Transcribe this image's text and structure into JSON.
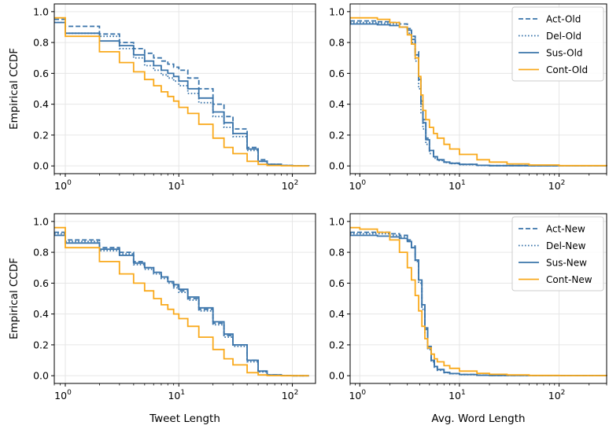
{
  "colors": {
    "blue": "#3a74aa",
    "orange": "#f9a91b",
    "grid": "#e6e6e6"
  },
  "chart_data": [
    {
      "type": "line",
      "xscale": "log",
      "xlim": [
        0.8,
        160
      ],
      "ylim": [
        -0.05,
        1.05
      ],
      "xlabel": "",
      "ylabel": "Empirical CCDF",
      "legend": null,
      "grid": true,
      "yticks": [
        "0.0",
        "0.2",
        "0.4",
        "0.6",
        "0.8",
        "1.0"
      ],
      "xticks": [
        {
          "base": "10",
          "exp": "0",
          "value": 1
        },
        {
          "base": "10",
          "exp": "1",
          "value": 10
        },
        {
          "base": "10",
          "exp": "2",
          "value": 100
        }
      ],
      "series": [
        {
          "name": "Act-Old",
          "style": "dashed",
          "color": "#3a74aa",
          "x": [
            0.8,
            1,
            2,
            3,
            4,
            5,
            6,
            7,
            8,
            9,
            10,
            12,
            15,
            20,
            25,
            30,
            40,
            50,
            60,
            80,
            100,
            140
          ],
          "y": [
            0.95,
            0.905,
            0.855,
            0.8,
            0.76,
            0.73,
            0.7,
            0.68,
            0.66,
            0.64,
            0.62,
            0.57,
            0.5,
            0.4,
            0.32,
            0.24,
            0.12,
            0.04,
            0.01,
            0.003,
            0.001,
            0
          ]
        },
        {
          "name": "Del-Old",
          "style": "dotted",
          "color": "#3a74aa",
          "x": [
            0.8,
            1,
            2,
            3,
            4,
            5,
            6,
            7,
            8,
            9,
            10,
            12,
            15,
            20,
            25,
            30,
            40,
            50,
            60,
            80,
            100,
            140
          ],
          "y": [
            0.93,
            0.86,
            0.84,
            0.76,
            0.7,
            0.65,
            0.62,
            0.59,
            0.57,
            0.55,
            0.52,
            0.47,
            0.41,
            0.32,
            0.25,
            0.19,
            0.1,
            0.03,
            0.01,
            0.003,
            0.001,
            0
          ]
        },
        {
          "name": "Sus-Old",
          "style": "solid",
          "color": "#3a74aa",
          "x": [
            0.8,
            1,
            2,
            3,
            4,
            5,
            6,
            7,
            8,
            9,
            10,
            12,
            15,
            20,
            25,
            30,
            40,
            50,
            60,
            80,
            100,
            140
          ],
          "y": [
            0.93,
            0.86,
            0.81,
            0.78,
            0.72,
            0.68,
            0.65,
            0.62,
            0.6,
            0.58,
            0.55,
            0.5,
            0.44,
            0.35,
            0.28,
            0.21,
            0.11,
            0.03,
            0.01,
            0.003,
            0.001,
            0
          ]
        },
        {
          "name": "Cont-Old",
          "style": "solid",
          "color": "#f9a91b",
          "x": [
            0.8,
            1,
            2,
            3,
            4,
            5,
            6,
            7,
            8,
            9,
            10,
            12,
            15,
            20,
            25,
            30,
            40,
            50,
            60,
            80,
            100,
            140
          ],
          "y": [
            0.96,
            0.84,
            0.74,
            0.67,
            0.61,
            0.56,
            0.52,
            0.48,
            0.45,
            0.42,
            0.38,
            0.34,
            0.27,
            0.18,
            0.12,
            0.08,
            0.03,
            0.01,
            0.003,
            0.001,
            0,
            0
          ]
        }
      ]
    },
    {
      "type": "line",
      "xscale": "log",
      "xlim": [
        0.8,
        300
      ],
      "ylim": [
        -0.05,
        1.05
      ],
      "xlabel": "",
      "ylabel": "",
      "legend": "top-right",
      "grid": true,
      "yticks": [
        "0.0",
        "0.2",
        "0.4",
        "0.6",
        "0.8",
        "1.0"
      ],
      "xticks": [
        {
          "base": "10",
          "exp": "0",
          "value": 1
        },
        {
          "base": "10",
          "exp": "1",
          "value": 10
        },
        {
          "base": "10",
          "exp": "2",
          "value": 100
        }
      ],
      "series": [
        {
          "name": "Act-Old",
          "style": "dashed",
          "color": "#3a74aa",
          "x": [
            0.8,
            1,
            1.5,
            2,
            2.5,
            3,
            3.3,
            3.6,
            3.9,
            4.1,
            4.3,
            4.6,
            5,
            5.5,
            6,
            7,
            8,
            10,
            15,
            20,
            50,
            300
          ],
          "y": [
            0.94,
            0.94,
            0.935,
            0.93,
            0.92,
            0.89,
            0.84,
            0.74,
            0.58,
            0.42,
            0.3,
            0.18,
            0.1,
            0.06,
            0.04,
            0.025,
            0.018,
            0.01,
            0.004,
            0.002,
            0.001,
            0
          ]
        },
        {
          "name": "Del-Old",
          "style": "dotted",
          "color": "#3a74aa",
          "x": [
            0.8,
            1,
            1.5,
            2,
            2.5,
            3,
            3.3,
            3.6,
            3.9,
            4.1,
            4.3,
            4.6,
            5,
            5.5,
            6,
            7,
            8,
            10,
            15,
            20,
            50,
            300
          ],
          "y": [
            0.93,
            0.93,
            0.925,
            0.92,
            0.9,
            0.86,
            0.8,
            0.68,
            0.5,
            0.34,
            0.24,
            0.14,
            0.08,
            0.05,
            0.035,
            0.022,
            0.015,
            0.008,
            0.003,
            0.002,
            0.001,
            0
          ]
        },
        {
          "name": "Sus-Old",
          "style": "solid",
          "color": "#3a74aa",
          "x": [
            0.8,
            1,
            1.5,
            2,
            2.5,
            3,
            3.3,
            3.6,
            3.9,
            4.1,
            4.3,
            4.6,
            5,
            5.5,
            6,
            7,
            8,
            10,
            15,
            20,
            50,
            300
          ],
          "y": [
            0.92,
            0.92,
            0.915,
            0.91,
            0.9,
            0.88,
            0.82,
            0.72,
            0.56,
            0.4,
            0.28,
            0.17,
            0.1,
            0.06,
            0.04,
            0.025,
            0.017,
            0.01,
            0.004,
            0.002,
            0.001,
            0
          ]
        },
        {
          "name": "Cont-Old",
          "style": "solid",
          "color": "#f9a91b",
          "x": [
            0.8,
            1,
            1.5,
            2,
            2.5,
            3,
            3.3,
            3.6,
            3.9,
            4.1,
            4.3,
            4.6,
            5,
            5.5,
            6,
            7,
            8,
            10,
            15,
            20,
            30,
            50,
            100,
            300
          ],
          "y": [
            0.96,
            0.96,
            0.95,
            0.93,
            0.9,
            0.85,
            0.79,
            0.7,
            0.58,
            0.46,
            0.36,
            0.3,
            0.25,
            0.21,
            0.18,
            0.14,
            0.11,
            0.075,
            0.04,
            0.025,
            0.013,
            0.006,
            0.002,
            0
          ]
        }
      ]
    },
    {
      "type": "line",
      "xscale": "log",
      "xlim": [
        0.8,
        160
      ],
      "ylim": [
        -0.05,
        1.05
      ],
      "xlabel": "Tweet Length",
      "ylabel": "Empirical CCDF",
      "legend": null,
      "grid": true,
      "yticks": [
        "0.0",
        "0.2",
        "0.4",
        "0.6",
        "0.8",
        "1.0"
      ],
      "xticks": [
        {
          "base": "10",
          "exp": "0",
          "value": 1
        },
        {
          "base": "10",
          "exp": "1",
          "value": 10
        },
        {
          "base": "10",
          "exp": "2",
          "value": 100
        }
      ],
      "series": [
        {
          "name": "Act-New",
          "style": "dashed",
          "color": "#3a74aa",
          "x": [
            0.8,
            1,
            2,
            3,
            4,
            5,
            6,
            7,
            8,
            9,
            10,
            12,
            15,
            20,
            25,
            30,
            40,
            50,
            60,
            80,
            100,
            140
          ],
          "y": [
            0.93,
            0.88,
            0.83,
            0.8,
            0.74,
            0.7,
            0.67,
            0.64,
            0.61,
            0.58,
            0.55,
            0.5,
            0.43,
            0.34,
            0.26,
            0.2,
            0.1,
            0.03,
            0.005,
            0.001,
            0,
            0
          ]
        },
        {
          "name": "Del-New",
          "style": "dotted",
          "color": "#3a74aa",
          "x": [
            0.8,
            1,
            2,
            3,
            4,
            5,
            6,
            7,
            8,
            9,
            10,
            12,
            15,
            20,
            25,
            30,
            40,
            50,
            60,
            80,
            100,
            140
          ],
          "y": [
            0.92,
            0.87,
            0.81,
            0.79,
            0.72,
            0.69,
            0.66,
            0.63,
            0.6,
            0.57,
            0.54,
            0.49,
            0.42,
            0.33,
            0.25,
            0.19,
            0.09,
            0.025,
            0.004,
            0.001,
            0,
            0
          ]
        },
        {
          "name": "Sus-New",
          "style": "solid",
          "color": "#3a74aa",
          "x": [
            0.8,
            1,
            2,
            3,
            4,
            5,
            6,
            7,
            8,
            9,
            10,
            12,
            15,
            20,
            25,
            30,
            40,
            50,
            60,
            80,
            100,
            140
          ],
          "y": [
            0.91,
            0.86,
            0.82,
            0.78,
            0.73,
            0.7,
            0.67,
            0.64,
            0.61,
            0.59,
            0.56,
            0.51,
            0.44,
            0.35,
            0.27,
            0.2,
            0.1,
            0.03,
            0.005,
            0.001,
            0,
            0
          ]
        },
        {
          "name": "Cont-New",
          "style": "solid",
          "color": "#f9a91b",
          "x": [
            0.8,
            1,
            2,
            3,
            4,
            5,
            6,
            7,
            8,
            9,
            10,
            12,
            15,
            20,
            25,
            30,
            40,
            50,
            60,
            80,
            100,
            140
          ],
          "y": [
            0.96,
            0.83,
            0.74,
            0.66,
            0.6,
            0.55,
            0.5,
            0.46,
            0.43,
            0.4,
            0.37,
            0.32,
            0.25,
            0.17,
            0.11,
            0.07,
            0.02,
            0.005,
            0.001,
            0,
            0,
            0
          ]
        }
      ]
    },
    {
      "type": "line",
      "xscale": "log",
      "xlim": [
        0.8,
        300
      ],
      "ylim": [
        -0.05,
        1.05
      ],
      "xlabel": "Avg. Word Length",
      "ylabel": "",
      "legend": "top-right",
      "grid": true,
      "yticks": [
        "0.0",
        "0.2",
        "0.4",
        "0.6",
        "0.8",
        "1.0"
      ],
      "xticks": [
        {
          "base": "10",
          "exp": "0",
          "value": 1
        },
        {
          "base": "10",
          "exp": "1",
          "value": 10
        },
        {
          "base": "10",
          "exp": "2",
          "value": 100
        }
      ],
      "series": [
        {
          "name": "Act-New",
          "style": "dashed",
          "color": "#3a74aa",
          "x": [
            0.8,
            1,
            1.5,
            2,
            2.5,
            3,
            3.3,
            3.6,
            3.9,
            4.2,
            4.5,
            4.8,
            5.2,
            5.6,
            6,
            7,
            8,
            10,
            15,
            20,
            50,
            300
          ],
          "y": [
            0.93,
            0.93,
            0.93,
            0.92,
            0.91,
            0.88,
            0.84,
            0.75,
            0.62,
            0.45,
            0.3,
            0.18,
            0.1,
            0.06,
            0.04,
            0.022,
            0.014,
            0.008,
            0.003,
            0.002,
            0.001,
            0
          ]
        },
        {
          "name": "Del-New",
          "style": "dotted",
          "color": "#3a74aa",
          "x": [
            0.8,
            1,
            1.5,
            2,
            2.5,
            3,
            3.3,
            3.6,
            3.9,
            4.2,
            4.5,
            4.8,
            5.2,
            5.6,
            6,
            7,
            8,
            10,
            15,
            20,
            50,
            300
          ],
          "y": [
            0.92,
            0.92,
            0.92,
            0.91,
            0.9,
            0.87,
            0.83,
            0.74,
            0.6,
            0.43,
            0.28,
            0.17,
            0.09,
            0.055,
            0.035,
            0.02,
            0.013,
            0.007,
            0.003,
            0.002,
            0.001,
            0
          ]
        },
        {
          "name": "Sus-New",
          "style": "solid",
          "color": "#3a74aa",
          "x": [
            0.8,
            1,
            1.5,
            2,
            2.5,
            3,
            3.3,
            3.6,
            3.9,
            4.2,
            4.5,
            4.8,
            5.2,
            5.6,
            6,
            7,
            8,
            10,
            15,
            20,
            50,
            300
          ],
          "y": [
            0.91,
            0.91,
            0.905,
            0.9,
            0.89,
            0.87,
            0.83,
            0.75,
            0.62,
            0.46,
            0.31,
            0.19,
            0.1,
            0.06,
            0.04,
            0.022,
            0.014,
            0.008,
            0.003,
            0.002,
            0.001,
            0
          ]
        },
        {
          "name": "Cont-New",
          "style": "solid",
          "color": "#f9a91b",
          "x": [
            0.8,
            1,
            1.5,
            2,
            2.5,
            3,
            3.3,
            3.6,
            3.9,
            4.2,
            4.5,
            4.8,
            5.2,
            5.6,
            6,
            7,
            8,
            10,
            15,
            20,
            30,
            50,
            100,
            300
          ],
          "y": [
            0.96,
            0.95,
            0.93,
            0.88,
            0.8,
            0.7,
            0.62,
            0.52,
            0.42,
            0.32,
            0.24,
            0.18,
            0.14,
            0.11,
            0.09,
            0.065,
            0.048,
            0.03,
            0.015,
            0.009,
            0.005,
            0.002,
            0.001,
            0
          ]
        }
      ]
    }
  ]
}
